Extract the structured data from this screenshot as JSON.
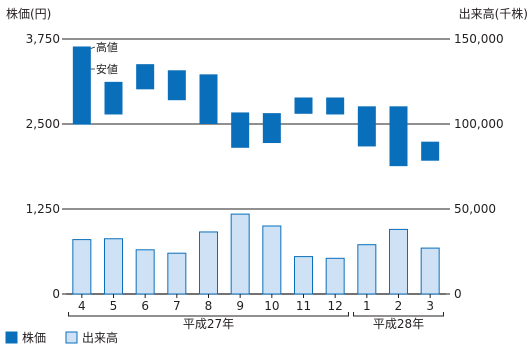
{
  "chart_data": {
    "type": "bar",
    "left_axis_title": "株価(円)",
    "right_axis_title": "出来高(千株)",
    "price_ticks": [
      0,
      1250,
      2500,
      3750
    ],
    "price_tick_labels": [
      "0",
      "1,250",
      "2,500",
      "3,750"
    ],
    "volume_ticks": [
      0,
      50000,
      100000,
      150000
    ],
    "volume_tick_labels": [
      "0",
      "50,000",
      "100,000",
      "150,000"
    ],
    "categories": [
      "4",
      "5",
      "6",
      "7",
      "8",
      "9",
      "10",
      "11",
      "12",
      "1",
      "2",
      "3"
    ],
    "groups": [
      {
        "label": "平成27年",
        "from": 0,
        "to": 8
      },
      {
        "label": "平成28年",
        "from": 9,
        "to": 11
      }
    ],
    "price_range_axis": [
      2000,
      3750
    ],
    "volume_axis": [
      0,
      50000
    ],
    "series": [
      {
        "name": "株価",
        "kind": "range",
        "color": "#0a6fba",
        "high": [
          3640,
          3120,
          3380,
          3290,
          3230,
          2670,
          2660,
          2890,
          2890,
          2760,
          2760,
          2240
        ],
        "low": [
          2490,
          2640,
          3010,
          2850,
          2500,
          2150,
          2220,
          2650,
          2640,
          2170,
          1880,
          1960
        ]
      },
      {
        "name": "出来高",
        "kind": "bar",
        "color": "#cfe1f5",
        "stroke": "#0a6fba",
        "values": [
          32000,
          32500,
          26000,
          24000,
          36500,
          47000,
          40000,
          22000,
          21000,
          29000,
          38000,
          27000
        ]
      }
    ],
    "annotations": [
      {
        "text": "高値",
        "target": "high",
        "index": 0
      },
      {
        "text": "安値",
        "target": "low",
        "index": 0
      }
    ]
  },
  "legend": [
    {
      "label": "株価",
      "color": "#0a6fba",
      "fill": "#0a6fba"
    },
    {
      "label": "出来高",
      "color": "#0a6fba",
      "fill": "#cfe1f5"
    }
  ]
}
